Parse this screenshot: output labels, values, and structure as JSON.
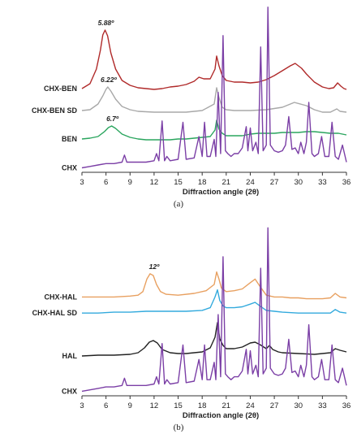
{
  "chart_data": [
    {
      "type": "line",
      "caption": "(a)",
      "xlabel": "Diffraction angle (2θ)",
      "xlim": [
        3,
        36
      ],
      "xticks": [
        3,
        6,
        9,
        12,
        15,
        18,
        21,
        24,
        27,
        30,
        33,
        36
      ],
      "annotations": [
        {
          "text": "5.88º",
          "x": 5.88,
          "series": "CHX-BEN"
        },
        {
          "text": "6.22º",
          "x": 6.22,
          "series": "CHX-BEN SD"
        },
        {
          "text": "6.7º",
          "x": 6.7,
          "series": "BEN"
        }
      ],
      "series": [
        {
          "name": "CHX-BEN",
          "color": "#b02a2a",
          "x": [
            3,
            4,
            4.8,
            5.3,
            5.6,
            5.88,
            6.2,
            6.6,
            7.2,
            8,
            9,
            10,
            11,
            12,
            13,
            14,
            15,
            16,
            17,
            17.6,
            18.2,
            19,
            19.6,
            19.8,
            20.1,
            20.5,
            21,
            22,
            23,
            24,
            25,
            26,
            27,
            28,
            29,
            29.6,
            30.4,
            31,
            32,
            33,
            33.8,
            34.4,
            34.9,
            35.3,
            35.7,
            36
          ],
          "y": [
            0.28,
            0.34,
            0.52,
            0.75,
            0.94,
            1.0,
            0.93,
            0.72,
            0.52,
            0.38,
            0.32,
            0.29,
            0.28,
            0.27,
            0.28,
            0.3,
            0.31,
            0.33,
            0.37,
            0.42,
            0.4,
            0.4,
            0.52,
            0.68,
            0.56,
            0.44,
            0.38,
            0.36,
            0.36,
            0.35,
            0.36,
            0.39,
            0.44,
            0.5,
            0.56,
            0.59,
            0.53,
            0.46,
            0.36,
            0.3,
            0.28,
            0.29,
            0.35,
            0.31,
            0.28,
            0.27
          ]
        },
        {
          "name": "CHX-BEN SD",
          "color": "#a8a8a8",
          "x": [
            3,
            4,
            5,
            5.6,
            6,
            6.22,
            6.6,
            7.2,
            8,
            9,
            10,
            12,
            14,
            16,
            18,
            19.5,
            19.8,
            20.1,
            20.5,
            21,
            22,
            24,
            26,
            28,
            29.5,
            31,
            32,
            33,
            34,
            34.8,
            35.2,
            36
          ],
          "y": [
            0.26,
            0.27,
            0.34,
            0.44,
            0.52,
            0.55,
            0.5,
            0.4,
            0.31,
            0.27,
            0.25,
            0.24,
            0.24,
            0.24,
            0.26,
            0.34,
            0.54,
            0.42,
            0.3,
            0.27,
            0.26,
            0.26,
            0.27,
            0.3,
            0.36,
            0.32,
            0.27,
            0.24,
            0.24,
            0.28,
            0.25,
            0.24
          ]
        },
        {
          "name": "BEN",
          "color": "#2aa55e",
          "x": [
            3,
            4,
            5,
            5.8,
            6.3,
            6.7,
            7.2,
            8,
            9,
            10,
            11,
            12,
            13,
            14,
            15,
            16,
            17,
            18,
            19,
            19.6,
            19.8,
            20.1,
            20.5,
            21,
            22,
            23,
            24,
            25,
            26,
            27,
            28,
            29,
            30,
            31,
            32,
            33,
            34,
            35,
            36
          ],
          "y": [
            0.15,
            0.16,
            0.18,
            0.24,
            0.29,
            0.31,
            0.28,
            0.21,
            0.17,
            0.15,
            0.14,
            0.14,
            0.14,
            0.14,
            0.15,
            0.15,
            0.16,
            0.17,
            0.18,
            0.26,
            0.38,
            0.27,
            0.22,
            0.19,
            0.19,
            0.19,
            0.21,
            0.22,
            0.22,
            0.22,
            0.23,
            0.23,
            0.23,
            0.24,
            0.24,
            0.23,
            0.22,
            0.22,
            0.2
          ]
        },
        {
          "name": "CHX",
          "color": "#7b3fa6",
          "x": [
            3,
            4,
            5,
            6,
            7,
            8,
            8.3,
            8.6,
            9,
            10,
            11,
            12,
            12.3,
            12.6,
            13,
            13.3,
            13.6,
            14,
            15,
            15.6,
            16,
            17,
            17.6,
            18,
            18.3,
            18.6,
            19,
            19.5,
            19.7,
            20,
            20.3,
            20.6,
            20.9,
            21.2,
            21.6,
            22,
            22.5,
            23,
            23.5,
            23.7,
            24,
            24.3,
            24.7,
            25,
            25.3,
            25.6,
            26,
            26.2,
            26.5,
            27,
            27.5,
            28,
            28.4,
            28.8,
            29.2,
            29.6,
            30,
            30.3,
            30.7,
            31,
            31.3,
            31.7,
            32,
            32.5,
            32.9,
            33.3,
            33.8,
            34.2,
            34.6,
            35,
            35.5,
            36
          ],
          "y": [
            0.02,
            0.03,
            0.04,
            0.05,
            0.05,
            0.06,
            0.11,
            0.06,
            0.06,
            0.06,
            0.06,
            0.07,
            0.12,
            0.07,
            0.35,
            0.07,
            0.1,
            0.07,
            0.08,
            0.34,
            0.08,
            0.09,
            0.24,
            0.1,
            0.34,
            0.1,
            0.1,
            0.22,
            0.1,
            0.55,
            0.12,
            0.95,
            0.14,
            0.12,
            0.1,
            0.12,
            0.12,
            0.16,
            0.31,
            0.14,
            0.3,
            0.14,
            0.2,
            0.12,
            0.87,
            0.14,
            0.18,
            1.15,
            0.18,
            0.14,
            0.13,
            0.14,
            0.18,
            0.38,
            0.15,
            0.16,
            0.12,
            0.2,
            0.12,
            0.2,
            0.48,
            0.12,
            0.1,
            0.12,
            0.24,
            0.1,
            0.1,
            0.34,
            0.1,
            0.08,
            0.18,
            0.06
          ]
        }
      ]
    },
    {
      "type": "line",
      "caption": "(b)",
      "xlabel": "Diffraction angle (2θ)",
      "xlim": [
        3,
        36
      ],
      "xticks": [
        3,
        6,
        9,
        12,
        15,
        18,
        21,
        24,
        27,
        30,
        33,
        36
      ],
      "annotations": [
        {
          "text": "12º",
          "x": 11.9,
          "series": "CHX-HAL"
        }
      ],
      "series": [
        {
          "name": "CHX-HAL",
          "color": "#e8a060",
          "x": [
            3,
            5,
            7,
            9,
            10,
            10.6,
            11.1,
            11.5,
            11.9,
            12.3,
            12.8,
            13.5,
            15,
            17,
            18.5,
            19.5,
            19.8,
            20.1,
            20.4,
            21,
            22,
            23,
            24,
            24.6,
            25.2,
            26,
            27,
            28,
            29,
            30,
            31,
            32,
            33,
            34,
            34.6,
            35.2,
            36
          ],
          "y": [
            0.46,
            0.46,
            0.46,
            0.47,
            0.48,
            0.52,
            0.66,
            0.72,
            0.7,
            0.6,
            0.52,
            0.49,
            0.48,
            0.5,
            0.53,
            0.6,
            0.74,
            0.66,
            0.56,
            0.52,
            0.53,
            0.55,
            0.62,
            0.66,
            0.58,
            0.48,
            0.46,
            0.46,
            0.45,
            0.45,
            0.44,
            0.44,
            0.44,
            0.45,
            0.5,
            0.46,
            0.45
          ]
        },
        {
          "name": "CHX-HAL SD",
          "color": "#33aadd",
          "x": [
            3,
            5,
            7,
            9,
            11,
            12,
            14,
            16,
            18,
            19,
            19.6,
            19.9,
            20.2,
            20.6,
            21,
            22,
            23,
            24,
            24.6,
            25.2,
            26,
            27,
            28,
            30,
            32,
            34,
            34.6,
            35.2,
            36
          ],
          "y": [
            0.38,
            0.38,
            0.39,
            0.39,
            0.4,
            0.4,
            0.4,
            0.4,
            0.41,
            0.44,
            0.56,
            0.64,
            0.52,
            0.46,
            0.44,
            0.44,
            0.45,
            0.48,
            0.5,
            0.46,
            0.41,
            0.4,
            0.39,
            0.38,
            0.38,
            0.38,
            0.42,
            0.39,
            0.38
          ]
        },
        {
          "name": "HAL",
          "color": "#222222",
          "x": [
            3,
            5,
            7,
            9,
            10,
            10.8,
            11.4,
            11.9,
            12.4,
            13,
            14,
            15,
            16,
            17,
            18,
            19,
            19.6,
            19.9,
            20.2,
            20.6,
            21,
            22,
            23,
            24,
            24.6,
            25.2,
            26,
            26.4,
            26.8,
            27.5,
            28,
            30,
            32,
            33,
            34,
            34.6,
            35.2,
            36
          ],
          "y": [
            0.17,
            0.18,
            0.18,
            0.19,
            0.21,
            0.27,
            0.34,
            0.36,
            0.33,
            0.25,
            0.21,
            0.2,
            0.2,
            0.21,
            0.22,
            0.27,
            0.4,
            0.58,
            0.38,
            0.3,
            0.26,
            0.26,
            0.28,
            0.33,
            0.34,
            0.31,
            0.26,
            0.3,
            0.25,
            0.22,
            0.21,
            0.2,
            0.19,
            0.2,
            0.21,
            0.26,
            0.24,
            0.22
          ]
        },
        {
          "name": "CHX",
          "color": "#7b3fa6",
          "x": [
            3,
            4,
            5,
            6,
            7,
            8,
            8.3,
            8.6,
            9,
            10,
            11,
            12,
            12.3,
            12.6,
            13,
            13.3,
            13.6,
            14,
            15,
            15.6,
            16,
            17,
            17.6,
            18,
            18.3,
            18.6,
            19,
            19.5,
            19.7,
            20,
            20.3,
            20.6,
            20.9,
            21.2,
            21.6,
            22,
            22.5,
            23,
            23.5,
            23.7,
            24,
            24.3,
            24.7,
            25,
            25.3,
            25.6,
            26,
            26.2,
            26.5,
            27,
            27.5,
            28,
            28.4,
            28.8,
            29.2,
            29.6,
            30,
            30.3,
            30.7,
            31,
            31.3,
            31.7,
            32,
            32.5,
            32.9,
            33.3,
            33.8,
            34.2,
            34.6,
            35,
            35.5,
            36
          ],
          "y": [
            0.02,
            0.03,
            0.04,
            0.05,
            0.05,
            0.06,
            0.11,
            0.06,
            0.06,
            0.06,
            0.06,
            0.07,
            0.12,
            0.07,
            0.35,
            0.07,
            0.1,
            0.07,
            0.08,
            0.34,
            0.08,
            0.09,
            0.24,
            0.1,
            0.34,
            0.1,
            0.1,
            0.22,
            0.1,
            0.55,
            0.12,
            0.95,
            0.14,
            0.12,
            0.1,
            0.12,
            0.12,
            0.16,
            0.31,
            0.14,
            0.3,
            0.14,
            0.2,
            0.12,
            0.87,
            0.14,
            0.18,
            1.15,
            0.18,
            0.14,
            0.13,
            0.14,
            0.18,
            0.38,
            0.15,
            0.16,
            0.12,
            0.2,
            0.12,
            0.2,
            0.48,
            0.12,
            0.1,
            0.12,
            0.24,
            0.1,
            0.1,
            0.34,
            0.1,
            0.08,
            0.18,
            0.06
          ]
        }
      ]
    }
  ]
}
